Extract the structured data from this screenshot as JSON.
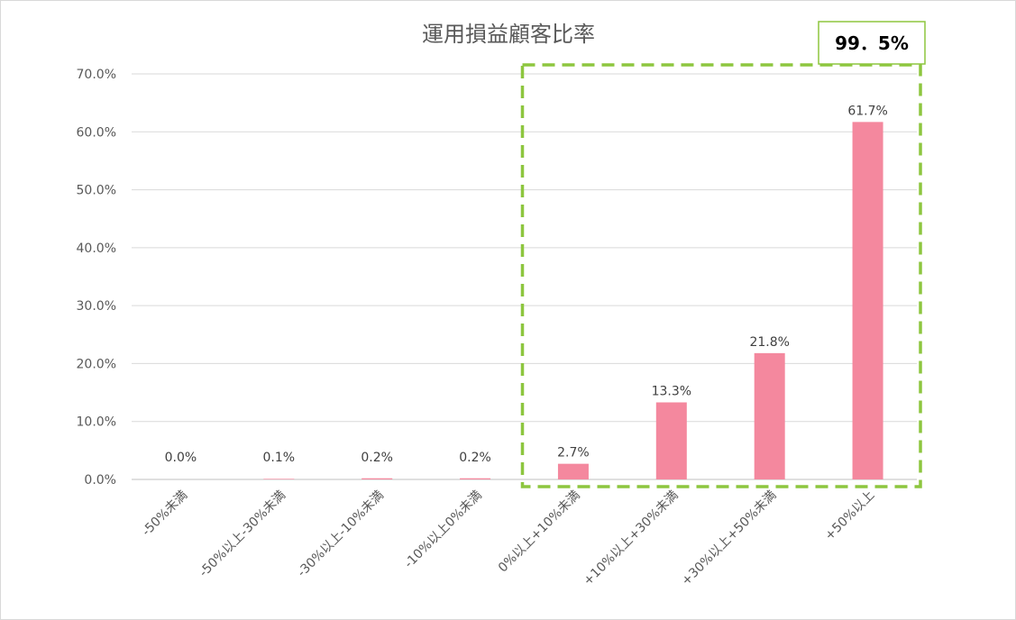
{
  "chart_data": {
    "type": "bar",
    "title": "運用損益顧客比率",
    "categories": [
      "-50%未満",
      "-50%以上-30%未満",
      "-30%以上-10%未満",
      "-10%以上0%未満",
      "0%以上+10%未満",
      "+10%以上+30%未満",
      "+30%以上+50%未満",
      "+50%以上"
    ],
    "values": [
      0.0,
      0.1,
      0.2,
      0.2,
      2.7,
      13.3,
      21.8,
      61.7
    ],
    "data_labels": [
      "0.0%",
      "0.1%",
      "0.2%",
      "0.2%",
      "2.7%",
      "13.3%",
      "21.8%",
      "61.7%"
    ],
    "ylim": [
      0,
      70
    ],
    "yticks": [
      "0.0%",
      "10.0%",
      "20.0%",
      "30.0%",
      "40.0%",
      "50.0%",
      "60.0%",
      "70.0%"
    ],
    "grid": true,
    "xlabel": "",
    "ylabel": "",
    "bar_color": "#f4889e",
    "highlight": {
      "from_category": "0%以上+10%未満",
      "to_category": "+50%以上",
      "label": "99．5%",
      "color": "#8dc63f"
    }
  }
}
